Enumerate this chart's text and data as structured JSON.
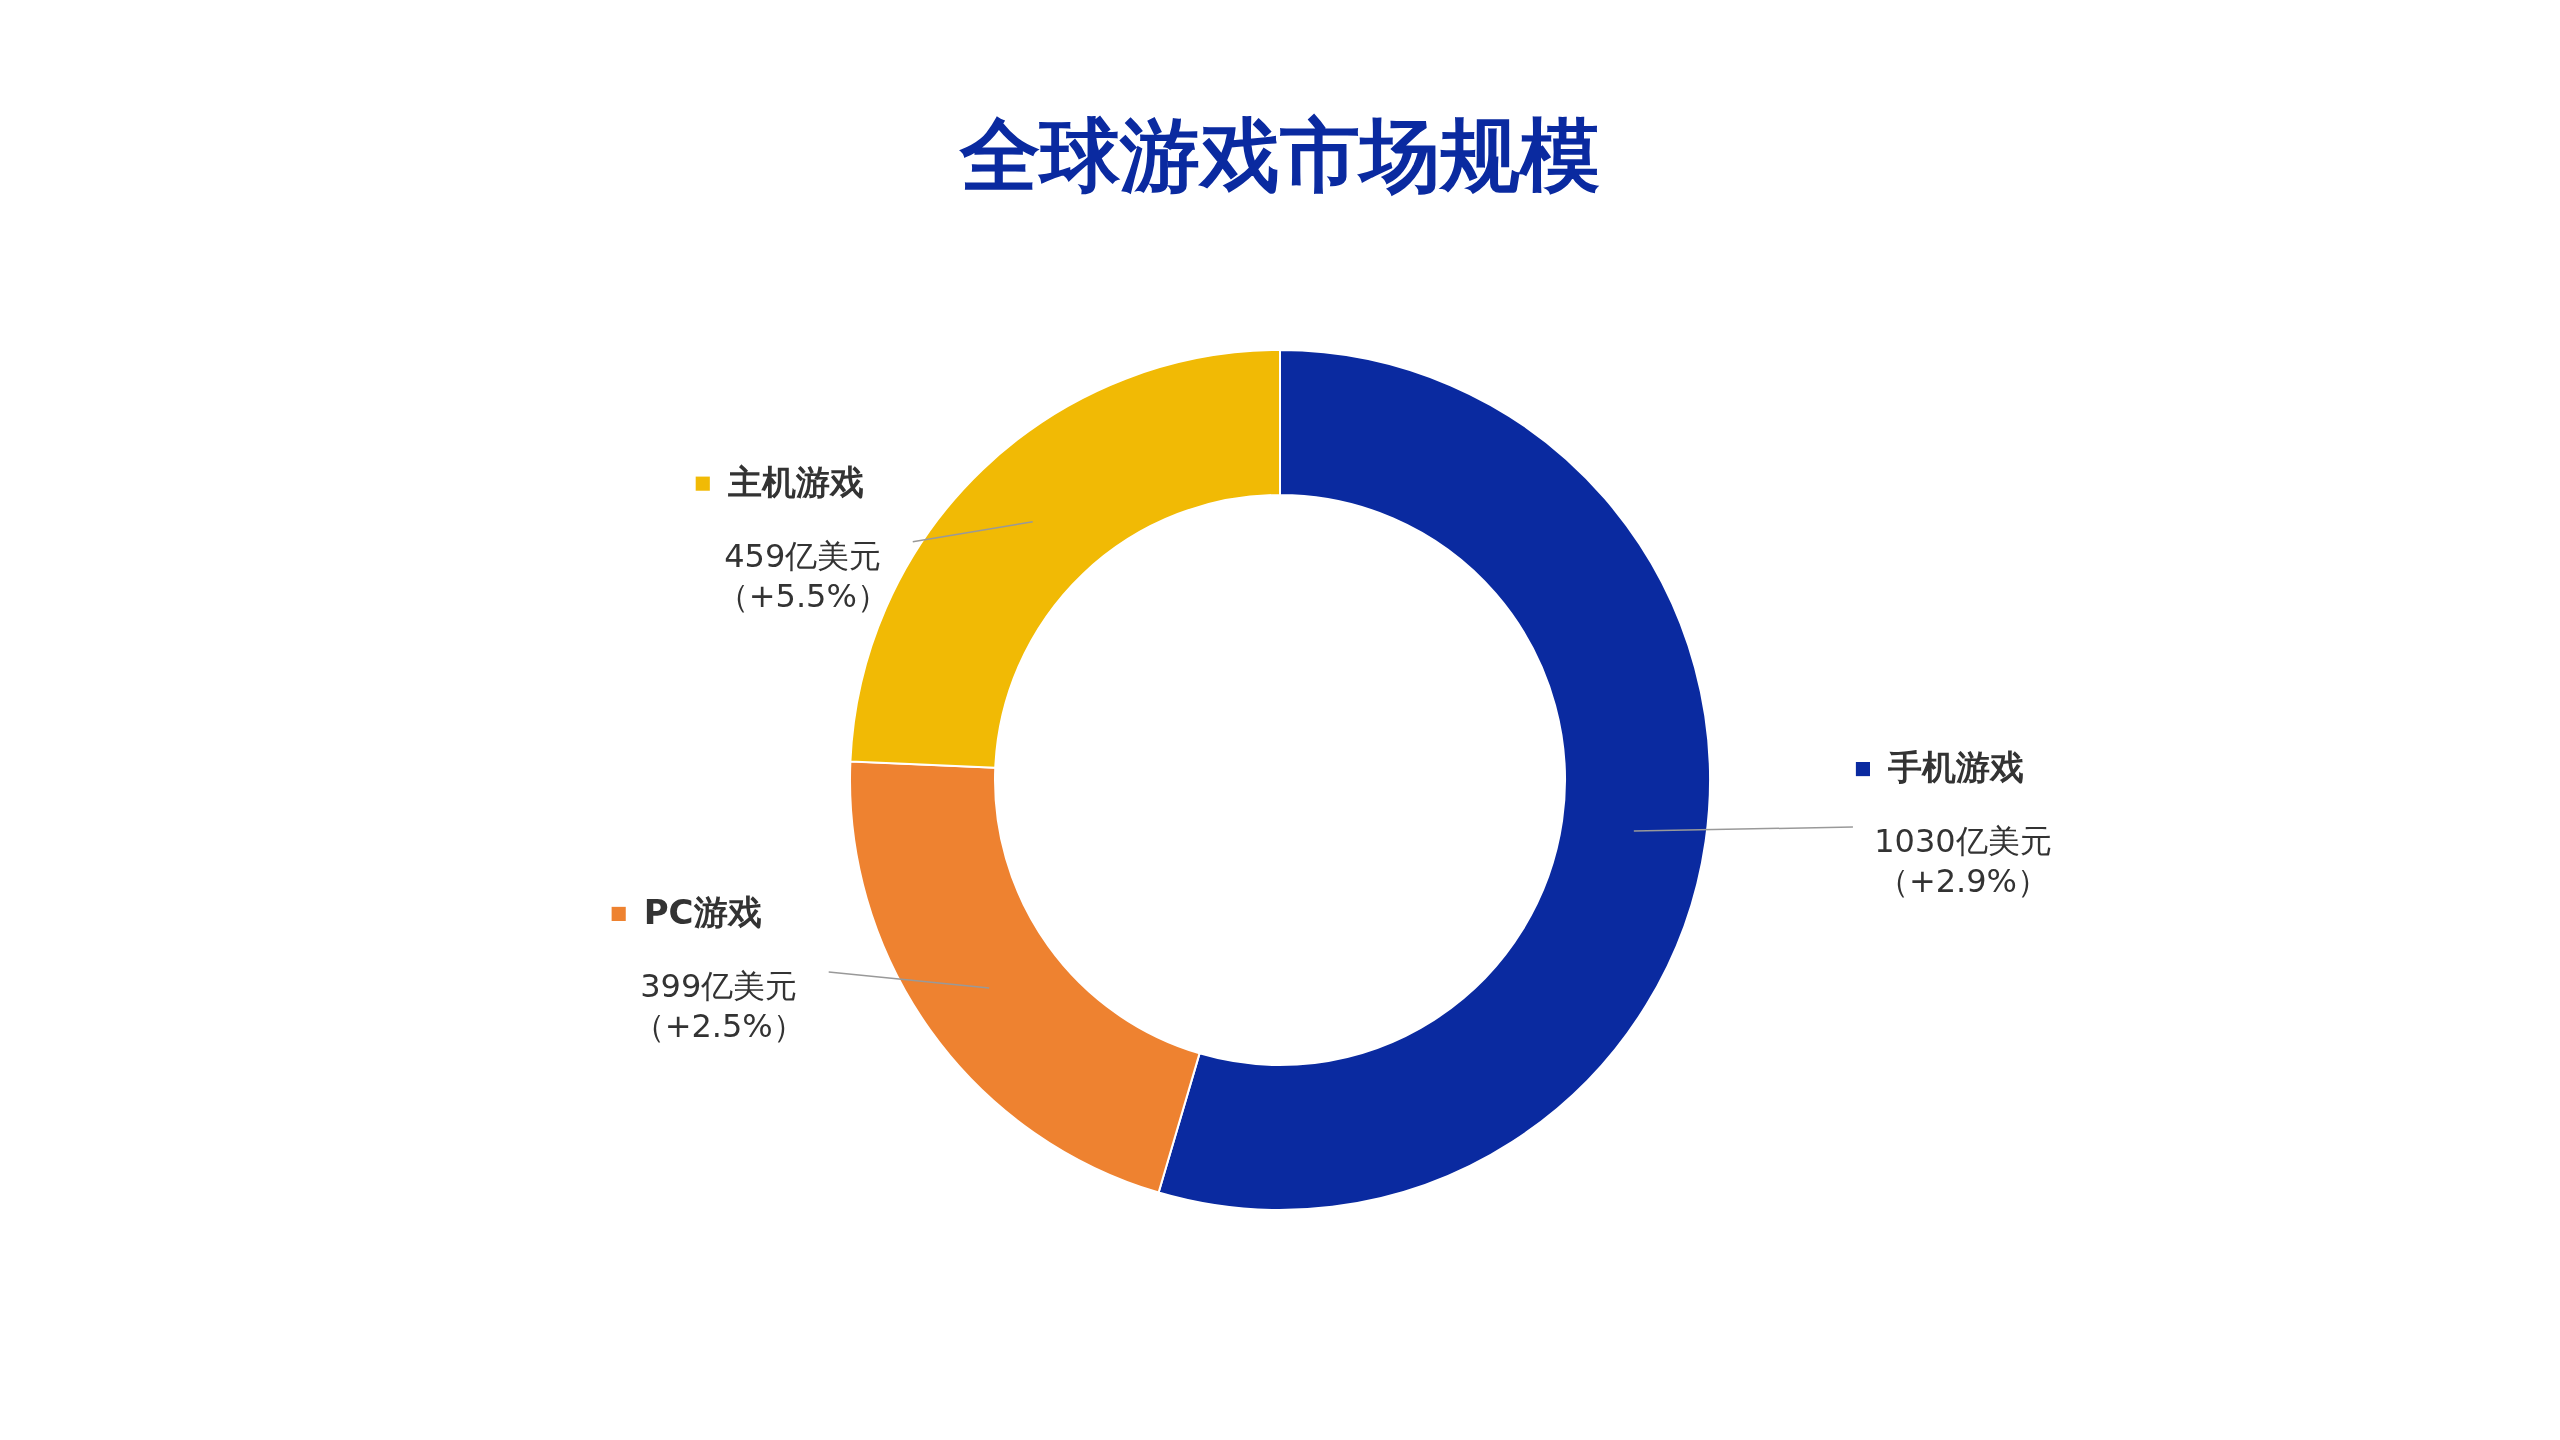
{
  "chart_data": {
    "type": "donut",
    "title": "全球游戏市场规模",
    "categories": [
      "手机游戏",
      "PC游戏",
      "主机游戏"
    ],
    "values": [
      1030,
      399,
      459
    ],
    "colors": [
      "#0a2aa0",
      "#ee8230",
      "#f1ba05"
    ],
    "value_labels": [
      "1030亿美元（+2.9%）",
      "399亿美元（+2.5%）",
      "459亿美元（+5.5%）"
    ],
    "legend": "left"
  }
}
